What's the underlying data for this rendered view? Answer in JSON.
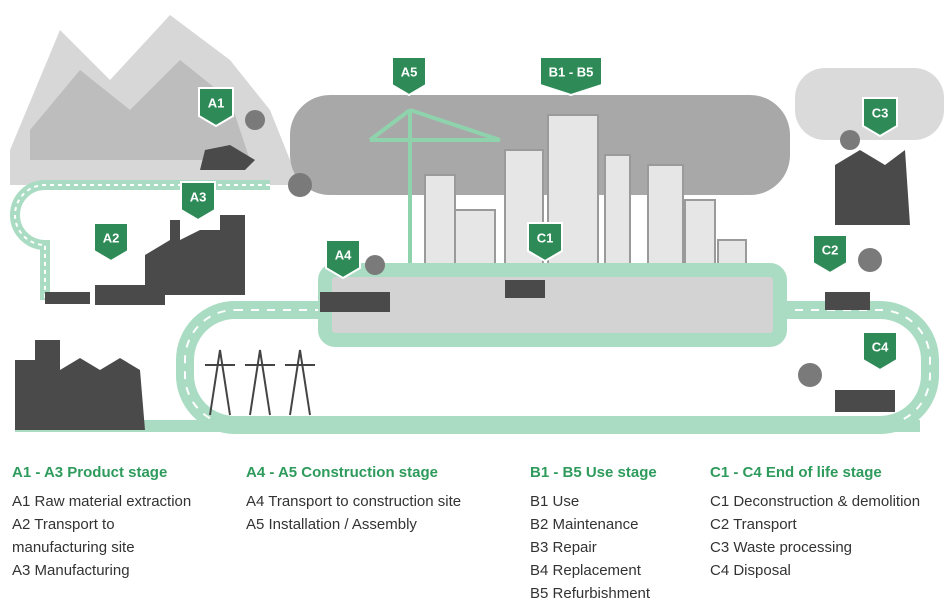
{
  "markers": [
    "A1",
    "A2",
    "A3",
    "A4",
    "A5",
    "B1 - B5",
    "C1",
    "C2",
    "C3",
    "C4"
  ],
  "legend": [
    {
      "title": "A1 - A3 Product stage",
      "items": [
        "A1 Raw material extraction",
        "A2 Transport to manufacturing site",
        "A3 Manufacturing"
      ]
    },
    {
      "title": "A4 - A5 Construction stage",
      "items": [
        "A4 Transport to construction site",
        "A5 Installation / Assembly"
      ]
    },
    {
      "title": "B1 - B5 Use stage",
      "items": [
        "B1 Use",
        "B2 Maintenance",
        "B3 Repair",
        "B4 Replacement",
        "B5 Refurbishment"
      ]
    },
    {
      "title": "C1 - C4 End of life stage",
      "items": [
        "C1 Deconstruction & demolition",
        "C2 Transport",
        "C3 Waste processing",
        "C4 Disposal"
      ]
    }
  ]
}
